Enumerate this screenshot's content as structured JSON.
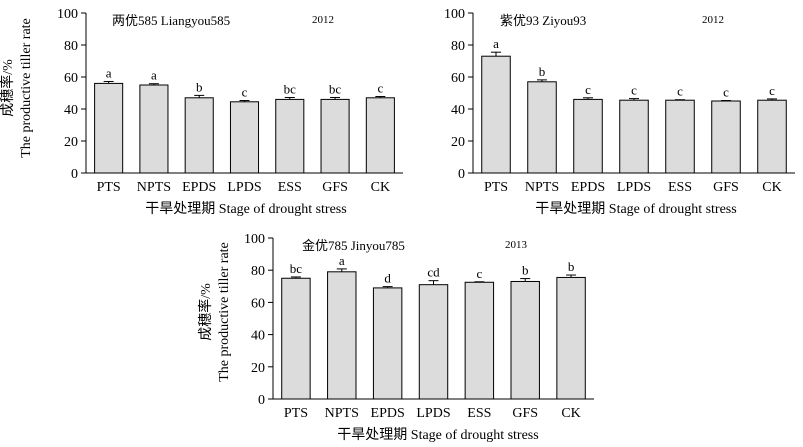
{
  "chart_data": [
    {
      "type": "bar",
      "title": "两优585  Liangyou585",
      "year": "2012",
      "categories": [
        "PTS",
        "NPTS",
        "EPDS",
        "LPDS",
        "ESS",
        "GFS",
        "CK"
      ],
      "values": [
        56,
        55,
        47,
        44.5,
        46,
        46,
        47
      ],
      "errors": [
        1.2,
        0.8,
        1.5,
        0.8,
        1.2,
        1.2,
        0.8
      ],
      "letters": [
        "a",
        "a",
        "b",
        "c",
        "bc",
        "bc",
        "c"
      ],
      "ylim": [
        0,
        100
      ],
      "yticks": [
        0,
        20,
        40,
        60,
        80,
        100
      ],
      "xlabel": "干旱处理期 Stage of drought stress",
      "ylabel_cn": "成穗率/%",
      "ylabel_en": "The productive tiller rate"
    },
    {
      "type": "bar",
      "title": "紫优93  Ziyou93",
      "year": "2012",
      "categories": [
        "PTS",
        "NPTS",
        "EPDS",
        "LPDS",
        "ESS",
        "GFS",
        "CK"
      ],
      "values": [
        73,
        57,
        46,
        45.5,
        45.5,
        45,
        45.5
      ],
      "errors": [
        2.5,
        1.2,
        1.0,
        1.0,
        0.3,
        0.3,
        0.8
      ],
      "letters": [
        "a",
        "b",
        "c",
        "c",
        "c",
        "c",
        "c"
      ],
      "ylim": [
        0,
        100
      ],
      "yticks": [
        0,
        20,
        40,
        60,
        80,
        100
      ],
      "xlabel": "干旱处理期 Stage of drought stress",
      "ylabel_cn": "",
      "ylabel_en": ""
    },
    {
      "type": "bar",
      "title": "金优785  Jinyou785",
      "year": "2013",
      "categories": [
        "PTS",
        "NPTS",
        "EPDS",
        "LPDS",
        "ESS",
        "GFS",
        "CK"
      ],
      "values": [
        75,
        79,
        69,
        71,
        72.5,
        73,
        75.5
      ],
      "errors": [
        0.8,
        1.8,
        0.8,
        2.5,
        0.3,
        1.8,
        1.5
      ],
      "letters": [
        "bc",
        "a",
        "d",
        "cd",
        "c",
        "b",
        "b"
      ],
      "ylim": [
        0,
        100
      ],
      "yticks": [
        0,
        20,
        40,
        60,
        80,
        100
      ],
      "xlabel": "干旱处理期 Stage of drought stress",
      "ylabel_cn": "成穗率/%",
      "ylabel_en": "The productive tiller rate"
    }
  ]
}
